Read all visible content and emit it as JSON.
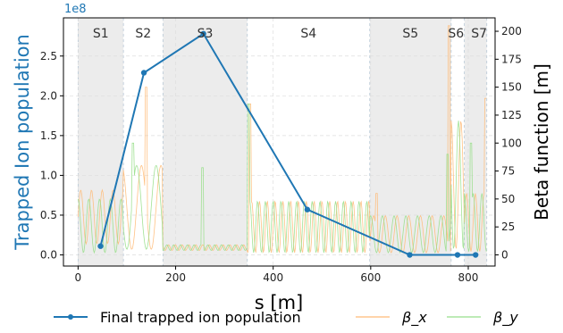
{
  "chart_data": {
    "type": "line",
    "xlabel": "s [m]",
    "ylabel": "Trapped Ion population",
    "ylabel_right": "Beta function [m]",
    "y_scale_note": "1e8",
    "xlim": [
      -30,
      855
    ],
    "ylim": [
      -0.14,
      2.98
    ],
    "ylim_right": [
      -10,
      212
    ],
    "x_ticks": [
      "0",
      "200",
      "400",
      "600",
      "800"
    ],
    "y_ticks": [
      "0.0",
      "0.5",
      "1.0",
      "1.5",
      "2.0",
      "2.5"
    ],
    "y_ticks_right": [
      "0",
      "25",
      "50",
      "75",
      "100",
      "125",
      "150",
      "175",
      "200"
    ],
    "grid": true,
    "legend_position": "bottom",
    "sections": [
      {
        "label": "S1",
        "start": 0,
        "end": 93,
        "shaded": true
      },
      {
        "label": "S2",
        "start": 93,
        "end": 174,
        "shaded": false
      },
      {
        "label": "S3",
        "start": 174,
        "end": 347,
        "shaded": true
      },
      {
        "label": "S4",
        "start": 347,
        "end": 598,
        "shaded": false
      },
      {
        "label": "S5",
        "start": 598,
        "end": 765,
        "shaded": true
      },
      {
        "label": "S6",
        "start": 765,
        "end": 792,
        "shaded": false
      },
      {
        "label": "S7",
        "start": 792,
        "end": 838,
        "shaded": true
      }
    ],
    "series": [
      {
        "name": "Final trapped ion population",
        "axis": "left",
        "color": "#1f77b4",
        "x": [
          46,
          135,
          257,
          470,
          680,
          778,
          815
        ],
        "y": [
          0.11,
          2.29,
          2.78,
          0.57,
          0.0,
          0.0,
          0.0
        ]
      },
      {
        "name": "β_x",
        "axis": "right",
        "color": "#ffbb78"
      },
      {
        "name": "β_y",
        "axis": "right",
        "color": "#98df8a"
      }
    ]
  }
}
